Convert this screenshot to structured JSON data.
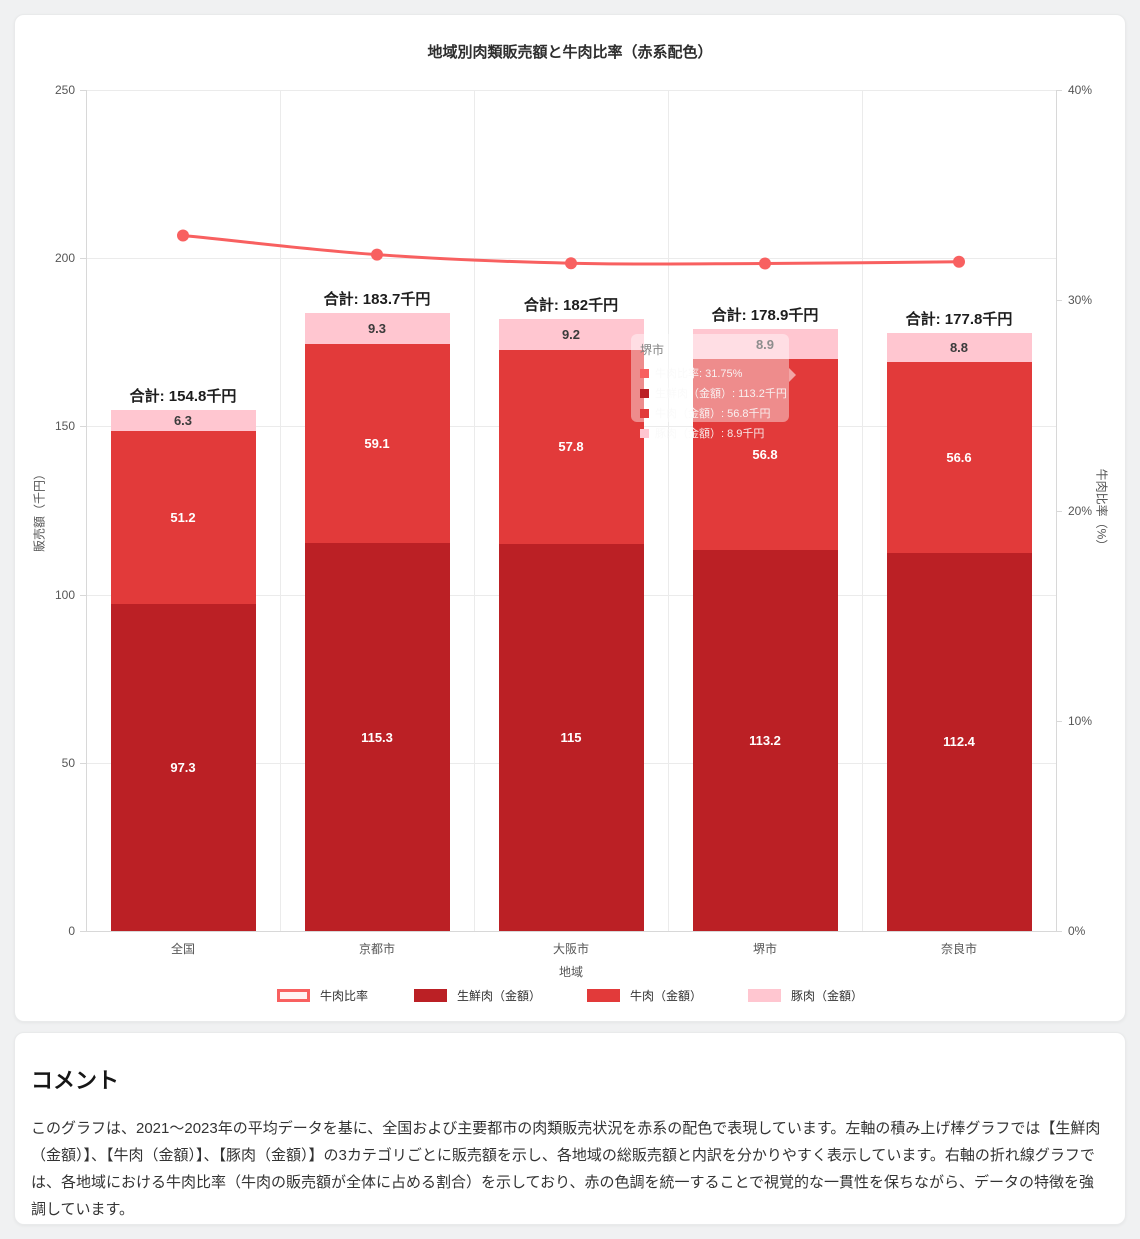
{
  "chart_data": {
    "type": "bar",
    "title": "地域別肉類販売額と牛肉比率（赤系配色）",
    "categories": [
      "全国",
      "京都市",
      "大阪市",
      "堺市",
      "奈良市"
    ],
    "xlabel": "地域",
    "axes": {
      "left": {
        "label": "販売額（千円）",
        "max": 250,
        "ticks": [
          250,
          200,
          150,
          100,
          50,
          0
        ]
      },
      "right": {
        "label": "牛肉比率（%）",
        "max": 40,
        "ticks": [
          40,
          30,
          20,
          10,
          0
        ],
        "tick_suffix": "%"
      }
    },
    "grid": "on",
    "bar_series": [
      {
        "name": "生鮮肉（金額）",
        "color": "#bb2025",
        "label_color": "#ffffff",
        "values": [
          97.3,
          115.3,
          115,
          113.2,
          112.4
        ]
      },
      {
        "name": "牛肉（金額）",
        "color": "#e23a3a",
        "label_color": "#ffffff",
        "values": [
          51.2,
          59.1,
          57.8,
          56.8,
          56.6
        ]
      },
      {
        "name": "豚肉（金額）",
        "color": "#ffc6d0",
        "label_color": "#3b3b3b",
        "values": [
          6.3,
          9.3,
          9.2,
          8.9,
          8.8
        ]
      }
    ],
    "line_series": {
      "name": "牛肉比率",
      "color": "#f86060",
      "values": [
        33.08,
        32.17,
        31.76,
        31.75,
        31.83
      ]
    },
    "totals": [
      "合計: 154.8千円",
      "合計: 183.7千円",
      "合計: 182千円",
      "合計: 178.9千円",
      "合計: 177.8千円"
    ],
    "legend": [
      {
        "label": "牛肉比率",
        "type": "line",
        "color": "#f86060",
        "fill": "#fff3f4"
      },
      {
        "label": "生鮮肉（金額）",
        "type": "bar",
        "color": "#bb2025"
      },
      {
        "label": "牛肉（金額）",
        "type": "bar",
        "color": "#e23a3a"
      },
      {
        "label": "豚肉（金額）",
        "type": "bar",
        "color": "#ffc6d0"
      }
    ],
    "tooltip": {
      "title": "堺市",
      "items": [
        {
          "marker_color": "#f86060",
          "text": "牛肉比率: 31.75%"
        },
        {
          "marker_color": "#bb2025",
          "text": "生鮮肉（金額）: 113.2千円"
        },
        {
          "marker_color": "#e23a3a",
          "text": "牛肉（金額）: 56.8千円"
        },
        {
          "marker_color": "#ffc6d0",
          "text": "豚肉（金額）: 8.9千円"
        }
      ]
    }
  },
  "comment": {
    "heading": "コメント",
    "body": "このグラフは、2021～2023年の平均データを基に、全国および主要都市の肉類販売状況を赤系の配色で表現しています。左軸の積み上げ棒グラフでは【生鮮肉（金額）】、【牛肉（金額）】、【豚肉（金額）】の3カテゴリごとに販売額を示し、各地域の総販売額と内訳を分かりやすく表示しています。右軸の折れ線グラフでは、各地域における牛肉比率（牛肉の販売額が全体に占める割合）を示しており、赤の色調を統一することで視覚的な一貫性を保ちながら、データの特徴を強調しています。"
  }
}
